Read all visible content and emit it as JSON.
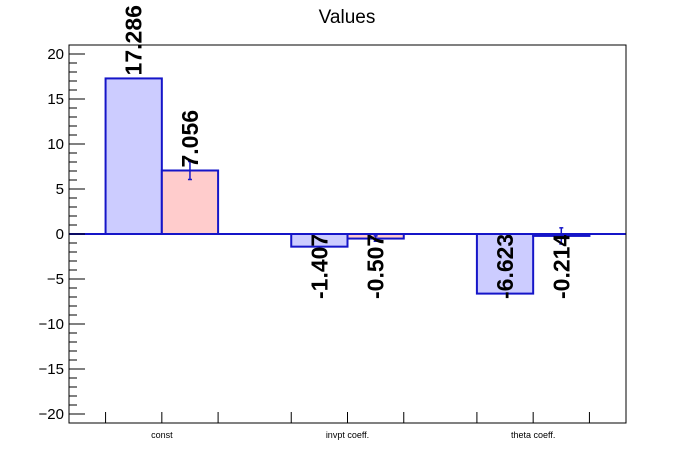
{
  "chart_data": {
    "type": "bar",
    "title": "Values",
    "xlabel": "",
    "ylabel": "",
    "categories": [
      "const",
      "invpt coeff.",
      "theta coeff."
    ],
    "ylim": [
      -21,
      21
    ],
    "yticks": [
      -20,
      -15,
      -10,
      -5,
      0,
      5,
      10,
      15,
      20
    ],
    "ytick_labels": [
      "−20",
      "−15",
      "−10",
      "−5",
      "0",
      "5",
      "10",
      "15",
      "20"
    ],
    "series": [
      {
        "values": [
          17.286,
          -1.407,
          -6.623
        ],
        "labels": [
          "17.286",
          "-1.407",
          "-6.623"
        ],
        "errors": [
          0,
          0,
          0
        ],
        "fill": "#ccccff",
        "stroke": "#1515c8"
      },
      {
        "values": [
          7.056,
          -0.507,
          -0.214
        ],
        "labels": [
          "7.056",
          "-0.507",
          "-0.214"
        ],
        "errors": [
          1.0,
          0.3,
          0.9
        ],
        "fill": "#ffcccc",
        "stroke": "#1515c8"
      }
    ]
  }
}
